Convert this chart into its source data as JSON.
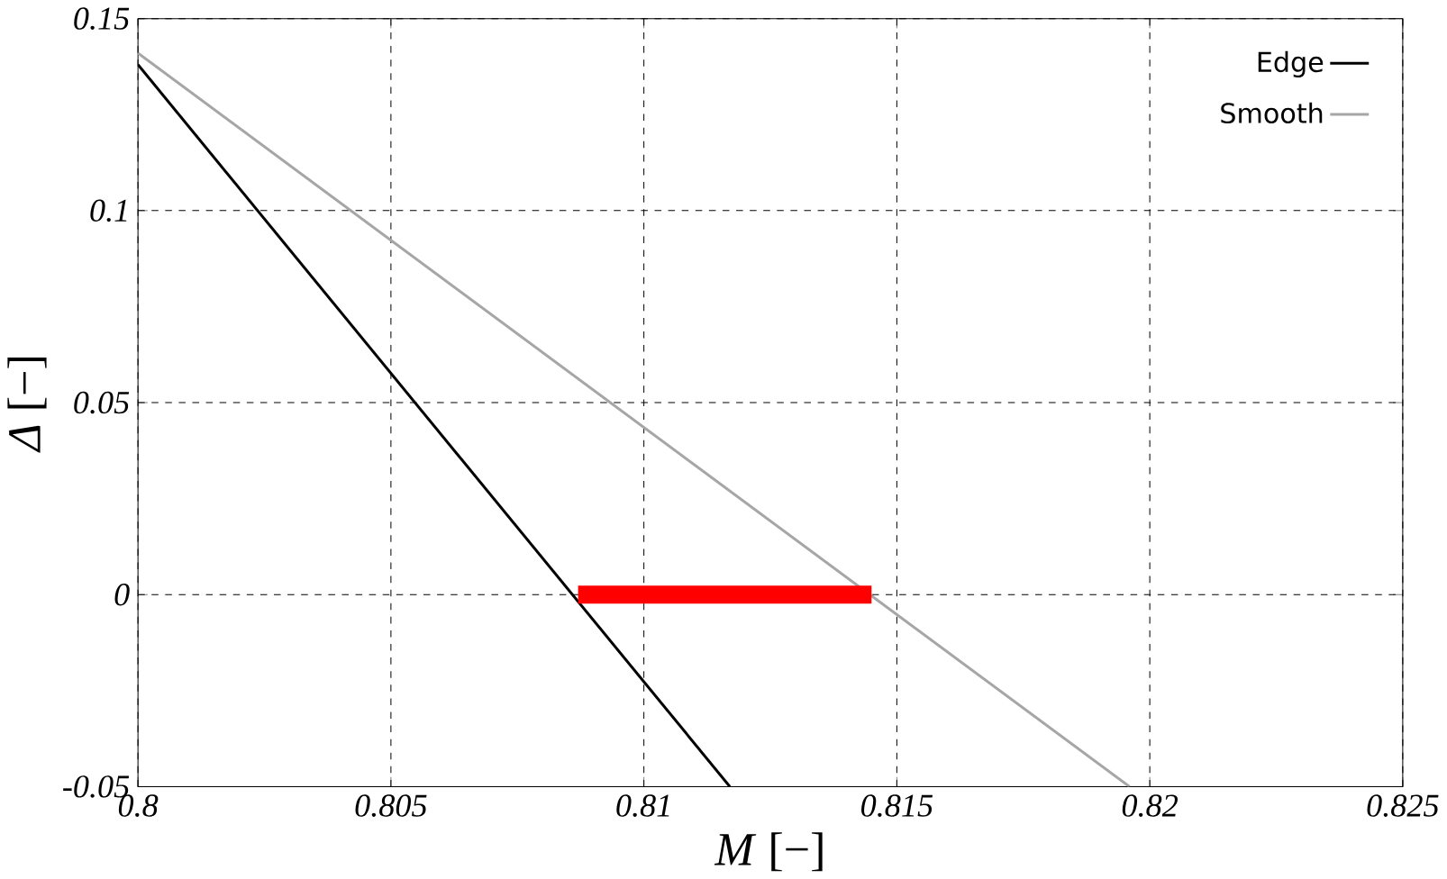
{
  "chart_data": {
    "type": "line",
    "xlabel": "*M* [−]",
    "ylabel": "*Δ* [−]",
    "xlim": [
      0.8,
      0.825
    ],
    "ylim": [
      -0.05,
      0.15
    ],
    "xticks": [
      0.8,
      0.805,
      0.81,
      0.815,
      0.82,
      0.825
    ],
    "yticks": [
      -0.05,
      0,
      0.05,
      0.1,
      0.15
    ],
    "grid": true,
    "legend": "top right",
    "series": [
      {
        "name": "Edge",
        "color": "#000000",
        "x": [
          0.8,
          0.8117
        ],
        "values": [
          0.138,
          -0.05
        ]
      },
      {
        "name": "Smooth",
        "color": "#a6a6a6",
        "x": [
          0.8,
          0.8196
        ],
        "values": [
          0.141,
          -0.05
        ]
      },
      {
        "color": "#ff0000",
        "x": [
          0.8087,
          0.8145
        ],
        "values": [
          0,
          0
        ],
        "line_style": "solid"
      }
    ]
  }
}
